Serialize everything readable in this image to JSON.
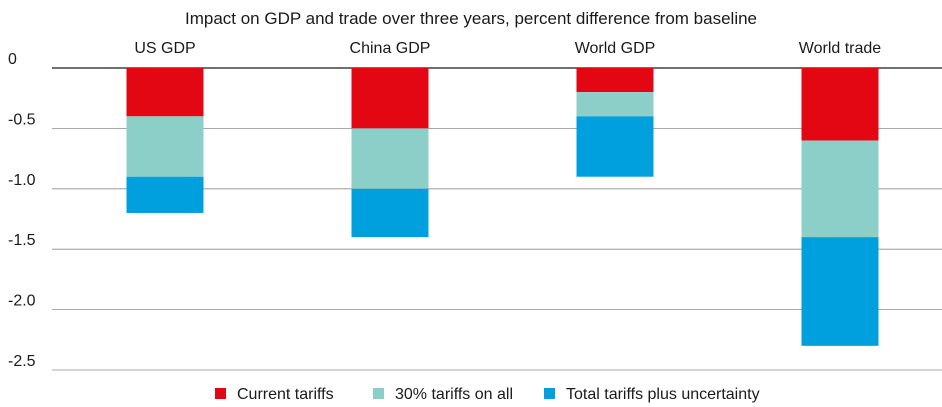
{
  "chart_data": {
    "type": "bar",
    "stacked": true,
    "title": "Impact on GDP and trade over three years, percent difference from baseline",
    "categories": [
      "US GDP",
      "China GDP",
      "World GDP",
      "World trade"
    ],
    "series": [
      {
        "name": "Current tariffs",
        "color": "#e30613",
        "values": [
          -0.4,
          -0.5,
          -0.2,
          -0.6
        ]
      },
      {
        "name": "30% tariffs on all",
        "color": "#8ccfc8",
        "values": [
          -0.5,
          -0.5,
          -0.2,
          -0.8
        ]
      },
      {
        "name": "Total tariffs plus uncertainty",
        "color": "#00a0df",
        "values": [
          -0.3,
          -0.4,
          -0.5,
          -0.9
        ]
      }
    ],
    "y_ticks": [
      0,
      -0.5,
      -1.0,
      -1.5,
      -2.0,
      -2.5
    ],
    "y_tick_labels": [
      "0",
      "-0.5",
      "-1.0",
      "-1.5",
      "-2.0",
      "-2.5"
    ],
    "ylim": [
      -2.5,
      0
    ],
    "grid": true,
    "legend_position": "bottom"
  }
}
